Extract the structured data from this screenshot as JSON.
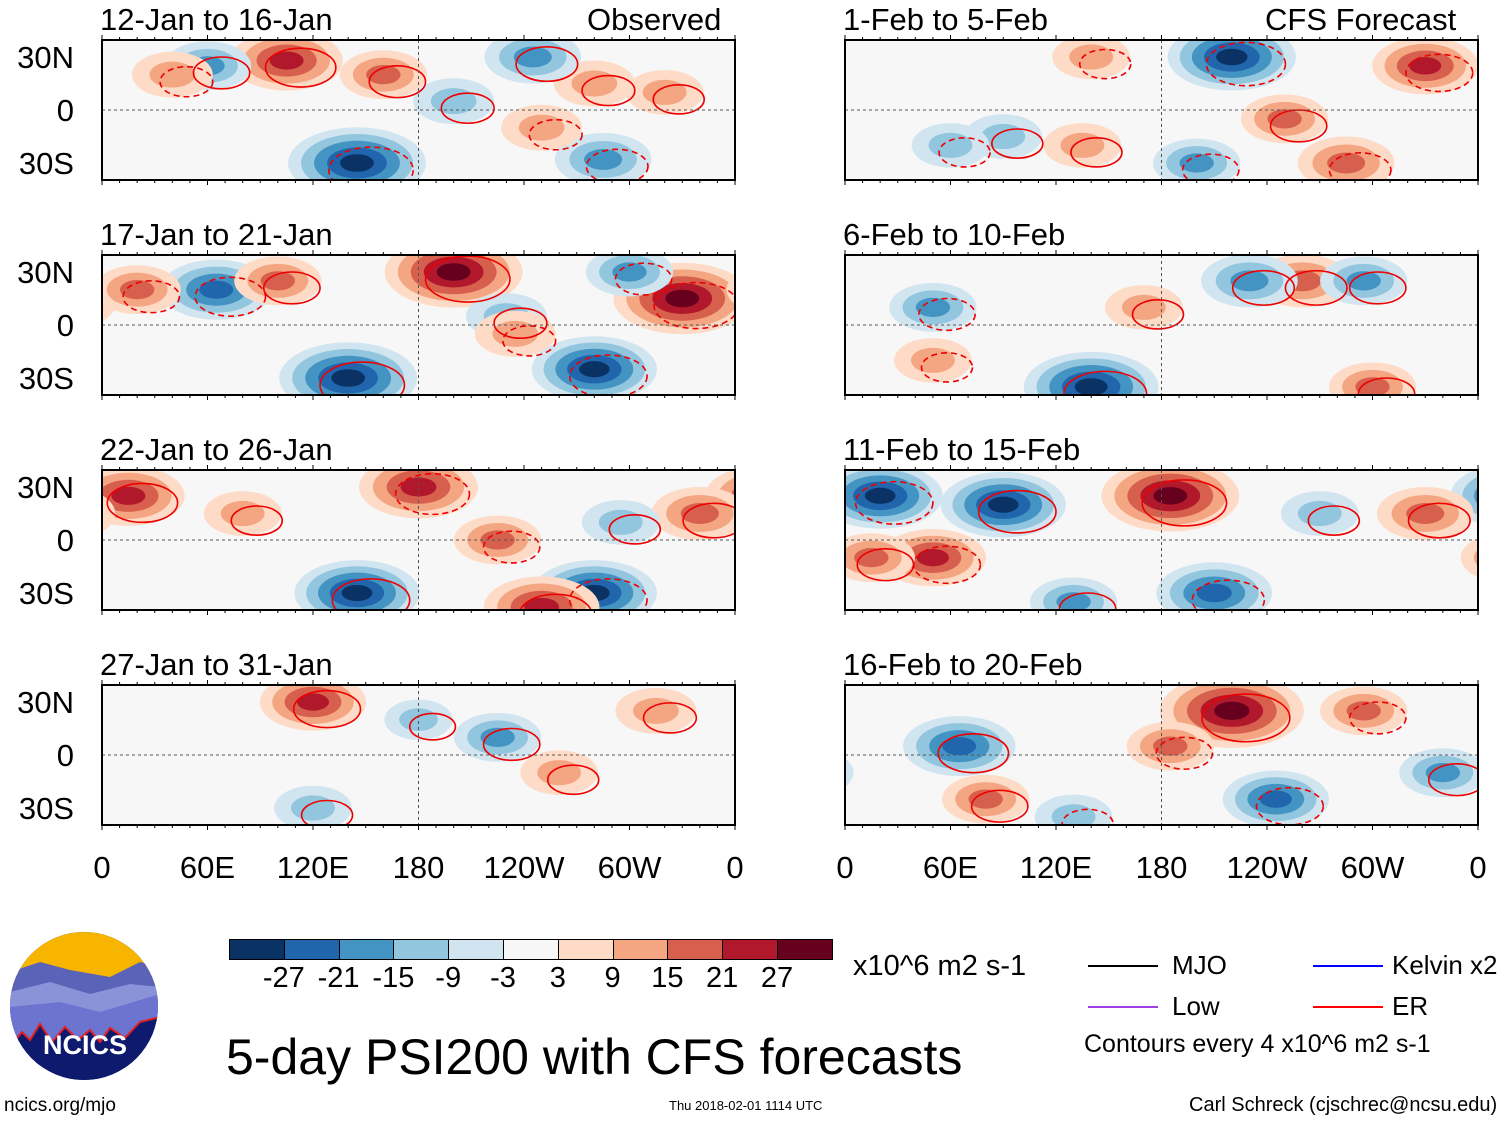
{
  "title": "5-day PSI200 with CFS forecasts",
  "column_labels": {
    "left": "Observed",
    "right": "CFS Forecast"
  },
  "lat_labels": [
    "30N",
    "0",
    "30S"
  ],
  "lon_labels": [
    "0",
    "60E",
    "120E",
    "180",
    "120W",
    "60W",
    "0"
  ],
  "colorbar": {
    "labels": [
      "-27",
      "-21",
      "-15",
      "-9",
      "-3",
      "3",
      "9",
      "15",
      "21",
      "27"
    ],
    "colors": [
      "#0b3264",
      "#2166ac",
      "#4393c3",
      "#92c5de",
      "#d1e5f0",
      "#f7f7f7",
      "#fddbc7",
      "#f4a582",
      "#d6604d",
      "#b2182b",
      "#67001f"
    ],
    "units": "x10^6 m2 s-1"
  },
  "legend": {
    "items": [
      {
        "label": "MJO",
        "color": "#000000"
      },
      {
        "label": "Kelvin x2",
        "color": "#0000ff"
      },
      {
        "label": "Low",
        "color": "#a040e0"
      },
      {
        "label": "ER",
        "color": "#ff0000"
      }
    ],
    "contour_note": "Contours every 4 x10^6 m2 s-1"
  },
  "logo": {
    "text": "NCICS"
  },
  "footer": {
    "url": "ncics.org/mjo",
    "timestamp": "Thu 2018-02-01 1114 UTC",
    "credit": "Carl Schreck (cjschrec@ncsu.edu)"
  },
  "chart_data": {
    "type": "heatmap",
    "variable": "200-hPa streamfunction anomaly",
    "units": "x10^6 m2 s-1",
    "lat_range": [
      -40,
      40
    ],
    "lon_range": [
      0,
      360
    ],
    "panels": [
      {
        "title": "12-Jan to 16-Jan",
        "source": "Observed",
        "features": [
          [
            105,
            28,
            20
          ],
          [
            60,
            25,
            -12
          ],
          [
            145,
            -30,
            -28
          ],
          [
            40,
            20,
            10
          ],
          [
            160,
            20,
            12
          ],
          [
            200,
            5,
            -10
          ],
          [
            285,
            -28,
            -15
          ],
          [
            250,
            -10,
            10
          ],
          [
            280,
            15,
            10
          ],
          [
            245,
            30,
            -15
          ],
          [
            320,
            10,
            9
          ]
        ]
      },
      {
        "title": "17-Jan to 21-Jan",
        "source": "Observed",
        "features": [
          [
            200,
            30,
            28
          ],
          [
            330,
            15,
            28
          ],
          [
            65,
            20,
            -20
          ],
          [
            20,
            20,
            12
          ],
          [
            100,
            25,
            12
          ],
          [
            140,
            -30,
            -28
          ],
          [
            280,
            -25,
            -24
          ],
          [
            230,
            5,
            -10
          ],
          [
            300,
            30,
            -12
          ],
          [
            235,
            -5,
            10
          ]
        ]
      },
      {
        "title": "22-Jan to 26-Jan",
        "source": "Observed",
        "features": [
          [
            15,
            25,
            20
          ],
          [
            180,
            30,
            22
          ],
          [
            340,
            15,
            15
          ],
          [
            145,
            -30,
            -24
          ],
          [
            280,
            -30,
            -24
          ],
          [
            225,
            0,
            12
          ],
          [
            250,
            -38,
            21
          ],
          [
            295,
            10,
            -9
          ],
          [
            80,
            15,
            9
          ]
        ]
      },
      {
        "title": "27-Jan to 31-Jan",
        "source": "Observed",
        "features": [
          [
            120,
            30,
            18
          ],
          [
            225,
            10,
            -12
          ],
          [
            315,
            25,
            10
          ],
          [
            120,
            -30,
            -9
          ],
          [
            260,
            -10,
            9
          ],
          [
            180,
            20,
            -6
          ]
        ]
      },
      {
        "title": "1-Feb to 5-Feb",
        "source": "CFS Forecast",
        "features": [
          [
            220,
            30,
            -25
          ],
          [
            330,
            25,
            18
          ],
          [
            135,
            -20,
            9
          ],
          [
            90,
            -15,
            -9
          ],
          [
            250,
            -5,
            12
          ],
          [
            285,
            -30,
            15
          ],
          [
            200,
            -30,
            -12
          ],
          [
            140,
            30,
            9
          ],
          [
            60,
            -20,
            -9
          ]
        ]
      },
      {
        "title": "6-Feb to 10-Feb",
        "source": "CFS Forecast",
        "features": [
          [
            260,
            25,
            15
          ],
          [
            230,
            25,
            -15
          ],
          [
            50,
            10,
            -12
          ],
          [
            140,
            -35,
            -27
          ],
          [
            170,
            10,
            9
          ],
          [
            295,
            25,
            -12
          ],
          [
            300,
            -35,
            12
          ],
          [
            50,
            -20,
            9
          ]
        ]
      },
      {
        "title": "11-Feb to 15-Feb",
        "source": "CFS Forecast",
        "features": [
          [
            20,
            25,
            -24
          ],
          [
            90,
            20,
            -24
          ],
          [
            185,
            25,
            28
          ],
          [
            50,
            -10,
            18
          ],
          [
            210,
            -30,
            -21
          ],
          [
            130,
            -35,
            -12
          ],
          [
            330,
            15,
            15
          ],
          [
            270,
            15,
            -9
          ],
          [
            15,
            -10,
            12
          ]
        ]
      },
      {
        "title": "16-Feb to 20-Feb",
        "source": "CFS Forecast",
        "features": [
          [
            220,
            25,
            30
          ],
          [
            65,
            5,
            -20
          ],
          [
            245,
            -25,
            -18
          ],
          [
            185,
            5,
            12
          ],
          [
            80,
            -25,
            12
          ],
          [
            295,
            25,
            12
          ],
          [
            130,
            -35,
            -9
          ],
          [
            340,
            -10,
            -12
          ]
        ]
      }
    ]
  }
}
